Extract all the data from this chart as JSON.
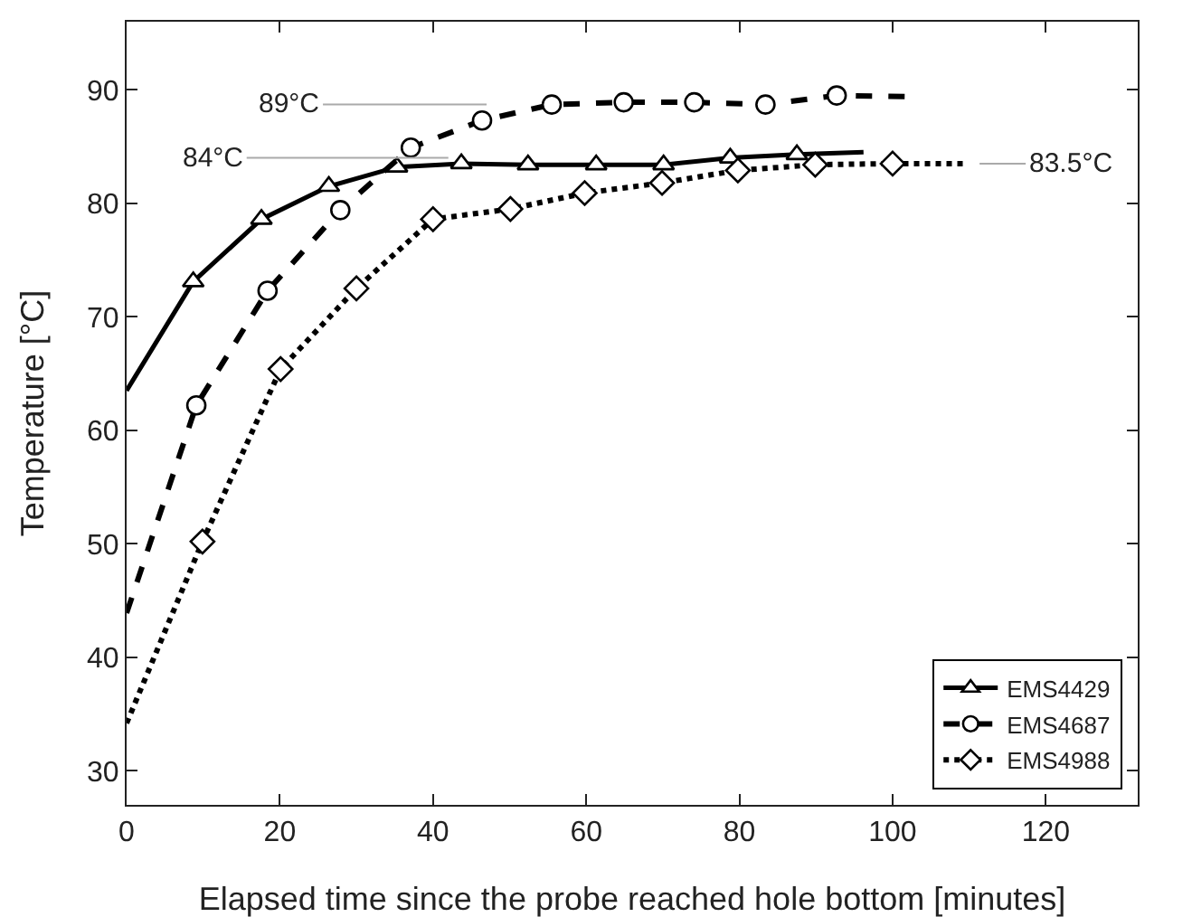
{
  "chart_data": {
    "type": "line",
    "xlabel": "Elapsed time since the probe reached hole bottom [minutes]",
    "ylabel": "Temperature [°C]",
    "xlim": [
      0,
      132
    ],
    "ylim": [
      27,
      96
    ],
    "xticks": [
      0,
      20,
      40,
      60,
      80,
      100,
      120
    ],
    "yticks": [
      30,
      40,
      50,
      60,
      70,
      80,
      90
    ],
    "grid": false,
    "legend": "bottom right",
    "series": [
      {
        "name": "EMS4429",
        "color": "#000000",
        "line_style": "solid",
        "marker": "triangle",
        "x": [
          0,
          8.7,
          17.6,
          26.4,
          35.3,
          43.7,
          52.4,
          61.3,
          70.1,
          78.8,
          87.5,
          96.2
        ],
        "values": [
          63.5,
          73.1,
          78.6,
          81.5,
          83.2,
          83.5,
          83.4,
          83.4,
          83.4,
          84.0,
          84.3,
          84.5
        ]
      },
      {
        "name": "EMS4687",
        "color": "#000000",
        "line_style": "dashed",
        "marker": "circle",
        "x": [
          0,
          9.1,
          18.4,
          27.9,
          37.1,
          46.4,
          55.5,
          64.9,
          74.1,
          83.4,
          92.7,
          101.8
        ],
        "values": [
          43.9,
          62.2,
          72.3,
          79.4,
          84.9,
          87.3,
          88.7,
          88.9,
          88.9,
          88.7,
          89.5,
          89.4
        ]
      },
      {
        "name": "EMS4988",
        "color": "#000000",
        "line_style": "dotted",
        "marker": "diamond",
        "x": [
          0,
          9.9,
          20.1,
          30,
          40,
          50.1,
          59.8,
          69.9,
          79.8,
          89.9,
          100,
          109.7
        ],
        "values": [
          34.2,
          50.2,
          65.4,
          72.5,
          78.6,
          79.5,
          80.9,
          81.8,
          82.9,
          83.4,
          83.5,
          83.5
        ]
      }
    ],
    "annotations": [
      {
        "text": "89°C",
        "x": 55.5,
        "y": 88.7
      },
      {
        "text": "84°C",
        "x": 42,
        "y": 84
      },
      {
        "text": "83.5°C",
        "x": 109.7,
        "y": 83.5
      }
    ]
  }
}
